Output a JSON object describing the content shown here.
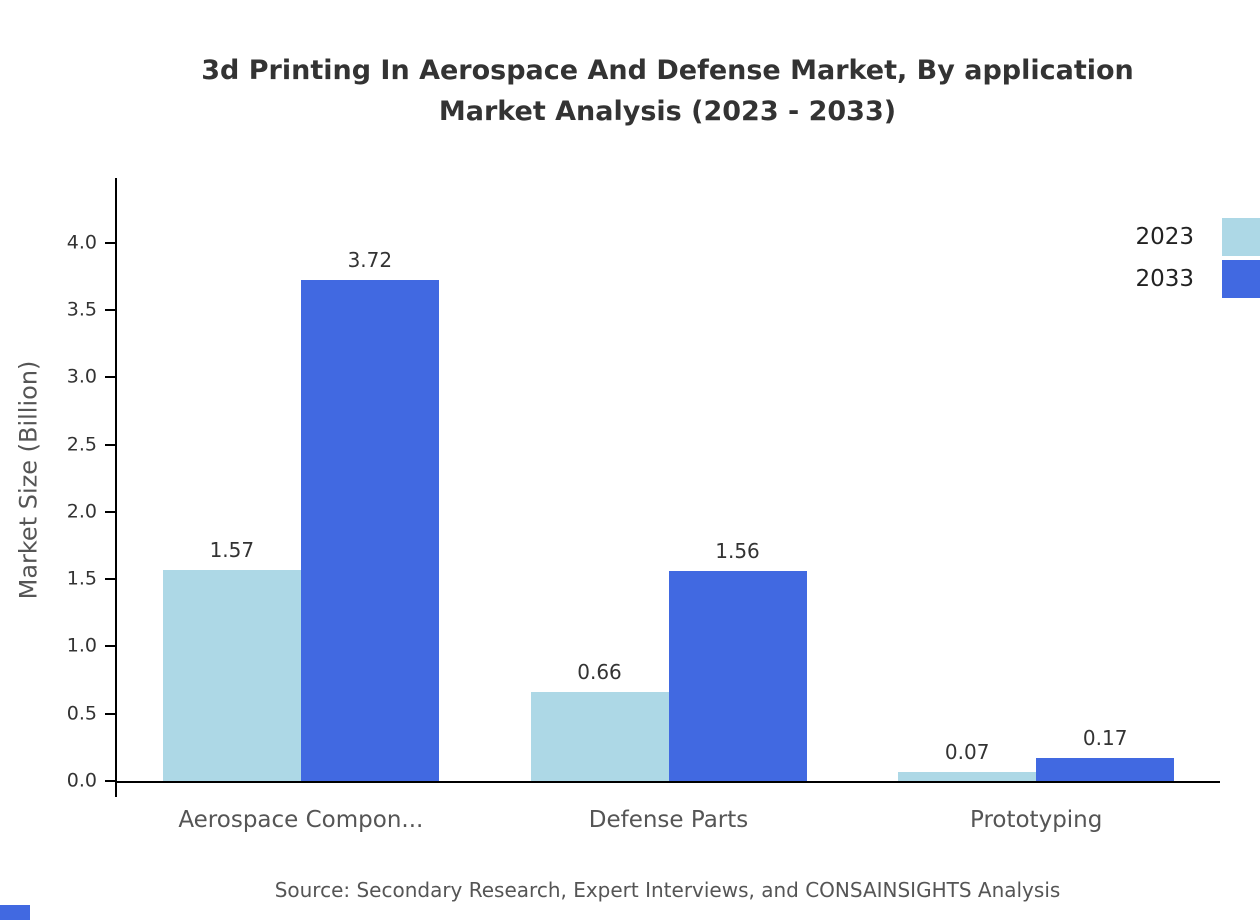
{
  "chart_data": {
    "type": "bar",
    "title_line1": "3d Printing In Aerospace And Defense Market, By application",
    "title_line2": "Market Analysis (2023 - 2033)",
    "ylabel": "Market Size (Billion)",
    "categories": [
      "Aerospace Compon...",
      "Defense Parts",
      "Prototyping"
    ],
    "series": [
      {
        "name": "2023",
        "color": "#ADD8E6",
        "values": [
          1.57,
          0.66,
          0.07
        ]
      },
      {
        "name": "2033",
        "color": "#4169E1",
        "values": [
          3.72,
          1.56,
          0.17
        ]
      }
    ],
    "y_ticks": [
      0.0,
      0.5,
      1.0,
      1.5,
      2.0,
      2.5,
      3.0,
      3.5,
      4.0
    ],
    "y_tick_labels": [
      "0.0",
      "0.5",
      "1.0",
      "1.5",
      "2.0",
      "2.5",
      "3.0",
      "3.5",
      "4.0"
    ],
    "ylim": [
      0,
      4.48
    ],
    "grid": false,
    "legend_position": "top-right",
    "source": "Source: Secondary Research, Expert Interviews, and CONSAINSIGHTS Analysis",
    "accent_color": "#4169E1"
  }
}
